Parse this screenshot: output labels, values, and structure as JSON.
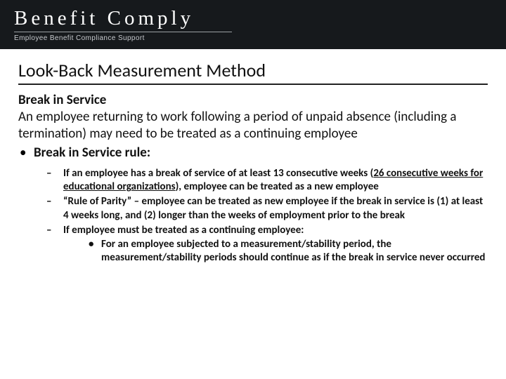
{
  "header": {
    "brand_main": "Benefit Comply",
    "brand_sub": "Employee Benefit Compliance Support",
    "bg_color": "#16191c",
    "rule_color": "#9ca0a4"
  },
  "content": {
    "title": "Look-Back Measurement Method",
    "sub_heading": "Break in Service",
    "body_text": "An employee returning to work following a period of unpaid absence (including a termination) may need to be treated as a continuing employee",
    "bullet_label": "Break in Service rule:",
    "dash_items": [
      {
        "pre": "If an employee has a break of service of at least 13 consecutive weeks (",
        "underline": "26 consecutive weeks for educational organizations",
        "post": "), employee can be treated as a new employee"
      },
      {
        "text": "“Rule of Parity” – employee can be treated as new employee if the break in service is (1) at least 4 weeks long, and (2) longer than the weeks of employment prior to the break"
      },
      {
        "text": "If employee must be treated as a continuing employee:",
        "sub": [
          "For an employee subjected to a measurement/stability period, the measurement/stability periods should continue as if the break in service never occurred"
        ]
      }
    ]
  },
  "style": {
    "title_fontsize": 26,
    "body_fontsize": 19,
    "dash_fontsize": 15,
    "text_color": "#111111",
    "background_color": "#ffffff"
  }
}
